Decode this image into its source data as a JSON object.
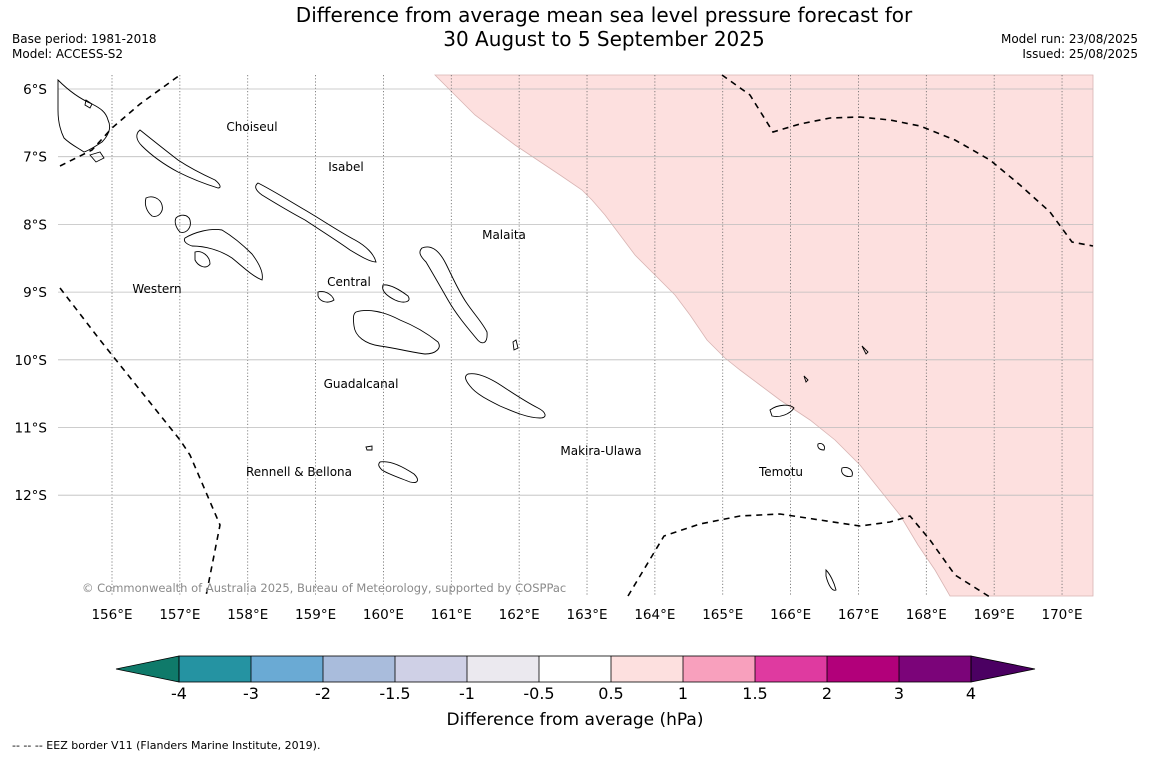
{
  "title": {
    "line1": "Difference from average mean sea level pressure forecast for",
    "line2": "30 August to 5 September 2025"
  },
  "meta": {
    "base_period": "Base period: 1981-2018",
    "model": "Model: ACCESS-S2",
    "model_run": "Model run: 23/08/2025",
    "issued": "Issued: 25/08/2025"
  },
  "map": {
    "lon_ticks": [
      "156°E",
      "157°E",
      "158°E",
      "159°E",
      "160°E",
      "161°E",
      "162°E",
      "163°E",
      "164°E",
      "165°E",
      "166°E",
      "167°E",
      "168°E",
      "169°E",
      "170°E"
    ],
    "lat_ticks": [
      "6°S",
      "7°S",
      "8°S",
      "9°S",
      "10°S",
      "11°S",
      "12°S"
    ],
    "region_labels": [
      "Choiseul",
      "Isabel",
      "Malaita",
      "Western",
      "Central",
      "Guadalcanal",
      "Makira-Ulawa",
      "Rennell & Bellona",
      "Temotu"
    ],
    "copyright": "© Commonwealth of Australia 2025, Bureau of Meteorology, supported by COSPPac",
    "anomaly_region_colour": "#fde0df"
  },
  "colorbar": {
    "ticks": [
      "-4",
      "-3",
      "-2",
      "-1.5",
      "-1",
      "-0.5",
      "0.5",
      "1",
      "1.5",
      "2",
      "3",
      "4"
    ],
    "colors": [
      "#0f7a6a",
      "#2593a2",
      "#6aaad4",
      "#a9bcdc",
      "#cfd0e6",
      "#ebe9ef",
      "#ffffff",
      "#fde0df",
      "#f8a0bd",
      "#df3aa0",
      "#b2007a",
      "#7b0479",
      "#4b0062"
    ],
    "label": "Difference from average (hPa)"
  },
  "footer": "--  --  -- EEZ border V11 (Flanders Marine Institute, 2019)."
}
